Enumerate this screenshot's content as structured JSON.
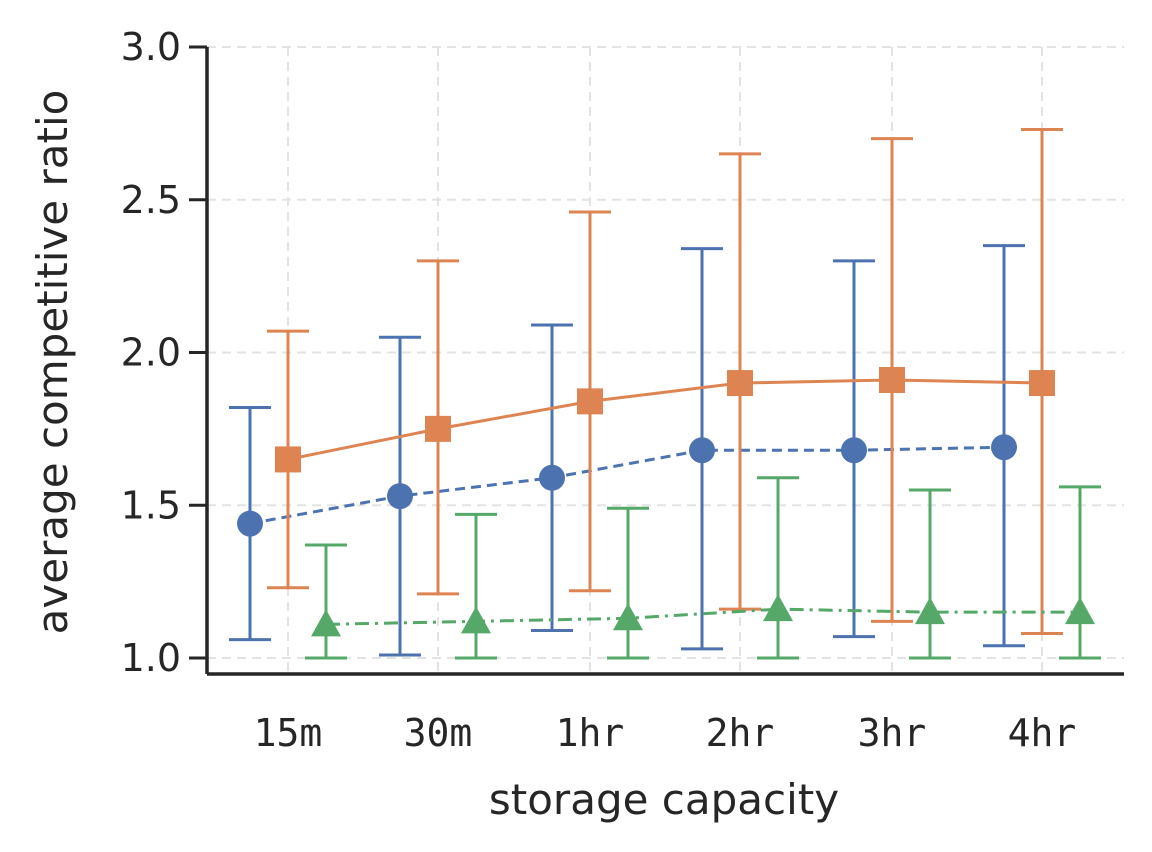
{
  "chart_data": {
    "type": "line",
    "title": "",
    "xlabel": "storage capacity",
    "ylabel": "average competitive ratio",
    "categories": [
      "15m",
      "30m",
      "1hr",
      "2hr",
      "3hr",
      "4hr"
    ],
    "ylim": [
      1.0,
      3.0
    ],
    "yticks": [
      "1.0",
      "1.5",
      "2.0",
      "2.5",
      "3.0"
    ],
    "grid": true,
    "series": [
      {
        "name": "blue-circle-dashed",
        "color": "#4c72b0",
        "marker": "circle",
        "linestyle": "dashed",
        "values": [
          1.44,
          1.53,
          1.59,
          1.68,
          1.68,
          1.69
        ],
        "lower": [
          1.06,
          1.01,
          1.09,
          1.03,
          1.07,
          1.04
        ],
        "upper": [
          1.82,
          2.05,
          2.09,
          2.34,
          2.3,
          2.35
        ]
      },
      {
        "name": "orange-square-solid",
        "color": "#dd8452",
        "marker": "square",
        "linestyle": "solid",
        "values": [
          1.65,
          1.75,
          1.84,
          1.9,
          1.91,
          1.9
        ],
        "lower": [
          1.23,
          1.21,
          1.22,
          1.16,
          1.12,
          1.08
        ],
        "upper": [
          2.07,
          2.3,
          2.46,
          2.65,
          2.7,
          2.73
        ]
      },
      {
        "name": "green-triangle-dashdot",
        "color": "#55a868",
        "marker": "triangle",
        "linestyle": "dashdot",
        "values": [
          1.11,
          1.12,
          1.13,
          1.16,
          1.15,
          1.15
        ],
        "lower": [
          1.0,
          1.0,
          1.0,
          1.0,
          1.0,
          1.0
        ],
        "upper": [
          1.37,
          1.47,
          1.49,
          1.59,
          1.55,
          1.56
        ]
      }
    ]
  }
}
